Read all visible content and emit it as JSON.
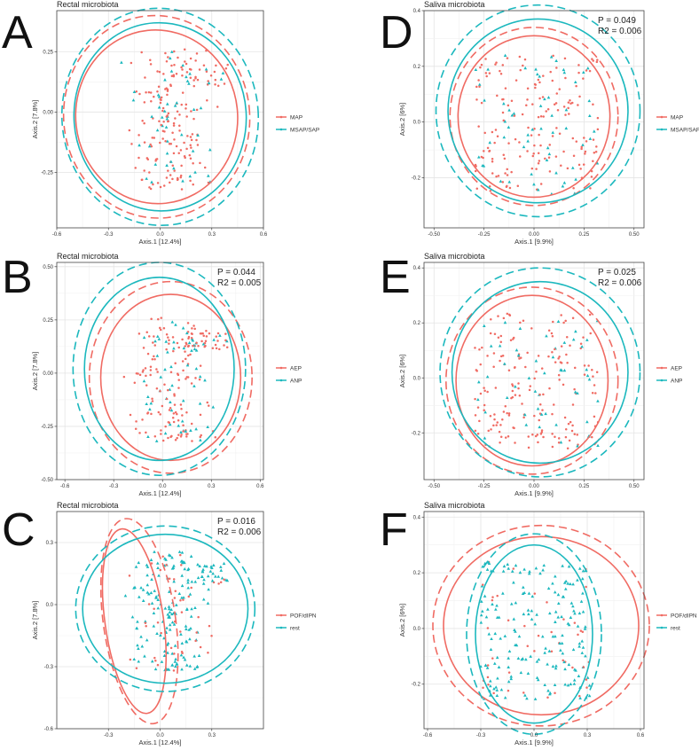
{
  "colors": {
    "red": "#F06B63",
    "teal": "#1CB8BE",
    "grid": "#e4e4e4",
    "frame": "#444444"
  },
  "chart_data": [
    {
      "id": "A",
      "letter": "A",
      "type": "scatter",
      "title": "Rectal microbiota",
      "xlabel": "Axis.1   [12.4%]",
      "ylabel": "Axis.2 [7.8%]",
      "xlim": [
        -0.6,
        0.6
      ],
      "ylim": [
        -0.48,
        0.42
      ],
      "xticks": [
        -0.6,
        -0.3,
        0.0,
        0.3,
        0.6
      ],
      "xtick_labels": [
        "-0.6",
        "-0.3",
        "0.0",
        "0.3",
        "0.6"
      ],
      "yticks": [
        -0.25,
        0.0,
        0.25
      ],
      "ytick_labels": [
        "-0.25",
        "0.00",
        "0.25"
      ],
      "stats": [],
      "legend": {
        "position": "right",
        "entries": [
          "MAP",
          "MSAP/SAP"
        ]
      },
      "points": {
        "shape": "rectal",
        "majority": "red",
        "seed": 11
      },
      "ellipses": [
        {
          "series": "MAP",
          "cx": -0.02,
          "cy": -0.02,
          "rx": 0.47,
          "ry": 0.36,
          "angle": -6,
          "dashed": false
        },
        {
          "series": "MAP",
          "cx": -0.02,
          "cy": -0.02,
          "rx": 0.54,
          "ry": 0.42,
          "angle": -6,
          "dashed": true
        },
        {
          "series": "MSAP/SAP",
          "cx": 0.0,
          "cy": -0.02,
          "rx": 0.5,
          "ry": 0.39,
          "angle": -4,
          "dashed": false
        },
        {
          "series": "MSAP/SAP",
          "cx": 0.0,
          "cy": -0.02,
          "rx": 0.57,
          "ry": 0.45,
          "angle": -4,
          "dashed": true
        }
      ]
    },
    {
      "id": "B",
      "letter": "B",
      "type": "scatter",
      "title": "Rectal microbiota",
      "xlabel": "Axis.1   [12.4%]",
      "ylabel": "Axis.2 [7.8%]",
      "xlim": [
        -0.65,
        0.62
      ],
      "ylim": [
        -0.5,
        0.52
      ],
      "xticks": [
        -0.6,
        -0.3,
        0.0,
        0.3,
        0.6
      ],
      "xtick_labels": [
        "-0.6",
        "-0.3",
        "0.0",
        "0.3",
        "0.6"
      ],
      "yticks": [
        -0.5,
        -0.25,
        0.0,
        0.25,
        0.5
      ],
      "ytick_labels": [
        "-0.50",
        "-0.25",
        "0.00",
        "0.25",
        "0.50"
      ],
      "stats": [
        "P = 0.044",
        "R2 = 0.005"
      ],
      "legend": {
        "position": "right",
        "entries": [
          "AEP",
          "ANP"
        ]
      },
      "points": {
        "shape": "rectal",
        "majority": "red",
        "seed": 23
      },
      "ellipses": [
        {
          "series": "AEP",
          "cx": 0.05,
          "cy": -0.02,
          "rx": 0.43,
          "ry": 0.39,
          "angle": 0,
          "dashed": false
        },
        {
          "series": "AEP",
          "cx": 0.05,
          "cy": -0.02,
          "rx": 0.5,
          "ry": 0.45,
          "angle": 0,
          "dashed": true
        },
        {
          "series": "ANP",
          "cx": -0.02,
          "cy": 0.02,
          "rx": 0.46,
          "ry": 0.43,
          "angle": 0,
          "dashed": false
        },
        {
          "series": "ANP",
          "cx": -0.02,
          "cy": 0.02,
          "rx": 0.53,
          "ry": 0.5,
          "angle": 0,
          "dashed": true
        }
      ]
    },
    {
      "id": "C",
      "letter": "C",
      "type": "scatter",
      "title": "Rectal microbiota",
      "xlabel": "Axis.1   [12.4%]",
      "ylabel": "Axis.2 [7.8%]",
      "xlim": [
        -0.6,
        0.6
      ],
      "ylim": [
        -0.6,
        0.45
      ],
      "xticks": [
        -0.3,
        0.0,
        0.3
      ],
      "xtick_labels": [
        "-0.3",
        "0.0",
        "0.3"
      ],
      "yticks": [
        -0.6,
        -0.3,
        0.0,
        0.3
      ],
      "ytick_labels": [
        "-0.6",
        "-0.3",
        "0.0",
        "0.3"
      ],
      "stats": [
        "P = 0.016",
        "R2 = 0.006"
      ],
      "legend": {
        "position": "right",
        "entries": [
          "POF/dIPN",
          "rest"
        ]
      },
      "points": {
        "shape": "rectal",
        "majority": "teal",
        "seed": 37
      },
      "ellipses": [
        {
          "series": "POF/dIPN",
          "cx": -0.15,
          "cy": -0.08,
          "rx": 0.17,
          "ry": 0.45,
          "angle": -8,
          "dashed": false
        },
        {
          "series": "POF/dIPN",
          "cx": -0.12,
          "cy": -0.08,
          "rx": 0.21,
          "ry": 0.5,
          "angle": -8,
          "dashed": true
        },
        {
          "series": "rest",
          "cx": 0.03,
          "cy": -0.02,
          "rx": 0.48,
          "ry": 0.36,
          "angle": 0,
          "dashed": false
        },
        {
          "series": "rest",
          "cx": 0.03,
          "cy": -0.02,
          "rx": 0.52,
          "ry": 0.4,
          "angle": 0,
          "dashed": true
        }
      ]
    },
    {
      "id": "D",
      "letter": "D",
      "type": "scatter",
      "title": "Saliva microbiota",
      "xlabel": "Axis.1   [9.9%]",
      "ylabel": "Axis.2 [6%]",
      "xlim": [
        -0.55,
        0.55
      ],
      "ylim": [
        -0.38,
        0.4
      ],
      "xticks": [
        -0.5,
        -0.25,
        0.0,
        0.25,
        0.5
      ],
      "xtick_labels": [
        "-0.50",
        "-0.25",
        "0.00",
        "0.25",
        "0.50"
      ],
      "yticks": [
        -0.2,
        0.0,
        0.2,
        0.4
      ],
      "ytick_labels": [
        "-0.2",
        "0.0",
        "0.2",
        "0.4"
      ],
      "stats": [
        "P = 0.049",
        "R2 = 0.006"
      ],
      "legend": {
        "position": "right",
        "entries": [
          "MAP",
          "MSAP/SAP"
        ]
      },
      "points": {
        "shape": "saliva",
        "majority": "red",
        "seed": 41
      },
      "ellipses": [
        {
          "series": "MAP",
          "cx": 0.0,
          "cy": 0.02,
          "rx": 0.38,
          "ry": 0.29,
          "angle": 0,
          "dashed": false
        },
        {
          "series": "MAP",
          "cx": 0.0,
          "cy": 0.02,
          "rx": 0.42,
          "ry": 0.32,
          "angle": 0,
          "dashed": true
        },
        {
          "series": "MSAP/SAP",
          "cx": 0.02,
          "cy": 0.04,
          "rx": 0.45,
          "ry": 0.33,
          "angle": 0,
          "dashed": false
        },
        {
          "series": "MSAP/SAP",
          "cx": 0.02,
          "cy": 0.04,
          "rx": 0.51,
          "ry": 0.38,
          "angle": 0,
          "dashed": true
        }
      ]
    },
    {
      "id": "E",
      "letter": "E",
      "type": "scatter",
      "title": "Saliva microbiota",
      "xlabel": "Axis.1   [9.9%]",
      "ylabel": "Axis.2 [6%]",
      "xlim": [
        -0.55,
        0.55
      ],
      "ylim": [
        -0.37,
        0.42
      ],
      "xticks": [
        -0.5,
        -0.25,
        0.0,
        0.25,
        0.5
      ],
      "xtick_labels": [
        "-0.50",
        "-0.25",
        "0.00",
        "0.25",
        "0.50"
      ],
      "yticks": [
        -0.2,
        0.0,
        0.2,
        0.4
      ],
      "ytick_labels": [
        "-0.2",
        "0.0",
        "0.2",
        "0.4"
      ],
      "stats": [
        "P = 0.025",
        "R2 = 0.006"
      ],
      "legend": {
        "position": "right",
        "entries": [
          "AEP",
          "ANP"
        ]
      },
      "points": {
        "shape": "saliva",
        "majority": "red",
        "seed": 53
      },
      "ellipses": [
        {
          "series": "AEP",
          "cx": -0.01,
          "cy": -0.01,
          "rx": 0.38,
          "ry": 0.31,
          "angle": 0,
          "dashed": false
        },
        {
          "series": "AEP",
          "cx": -0.01,
          "cy": -0.01,
          "rx": 0.43,
          "ry": 0.34,
          "angle": 0,
          "dashed": true
        },
        {
          "series": "ANP",
          "cx": 0.03,
          "cy": 0.02,
          "rx": 0.44,
          "ry": 0.33,
          "angle": 0,
          "dashed": false
        },
        {
          "series": "ANP",
          "cx": 0.03,
          "cy": 0.02,
          "rx": 0.5,
          "ry": 0.38,
          "angle": 0,
          "dashed": true
        }
      ]
    },
    {
      "id": "F",
      "letter": "F",
      "type": "scatter",
      "title": "Saliva microbiota",
      "xlabel": "Axis.1   [9.9%]",
      "ylabel": "Axis.2 [6%]",
      "xlim": [
        -0.62,
        0.62
      ],
      "ylim": [
        -0.36,
        0.42
      ],
      "xticks": [
        -0.6,
        -0.3,
        0.0,
        0.3,
        0.6
      ],
      "xtick_labels": [
        "-0.6",
        "-0.3",
        "0.0",
        "0.3",
        "0.6"
      ],
      "yticks": [
        -0.2,
        0.0,
        0.2,
        0.4
      ],
      "ytick_labels": [
        "-0.2",
        "0.0",
        "0.2",
        "0.4"
      ],
      "stats": [],
      "legend": {
        "position": "right",
        "entries": [
          "POF/dIPN",
          "rest"
        ]
      },
      "points": {
        "shape": "saliva",
        "majority": "teal",
        "seed": 67
      },
      "ellipses": [
        {
          "series": "POF/dIPN",
          "cx": 0.04,
          "cy": 0.01,
          "rx": 0.55,
          "ry": 0.32,
          "angle": 0,
          "dashed": false
        },
        {
          "series": "POF/dIPN",
          "cx": 0.04,
          "cy": 0.01,
          "rx": 0.61,
          "ry": 0.36,
          "angle": 0,
          "dashed": true
        },
        {
          "series": "rest",
          "cx": 0.0,
          "cy": -0.02,
          "rx": 0.33,
          "ry": 0.32,
          "angle": 0,
          "dashed": false
        },
        {
          "series": "rest",
          "cx": 0.0,
          "cy": -0.02,
          "rx": 0.38,
          "ry": 0.36,
          "angle": 0,
          "dashed": true
        }
      ]
    }
  ]
}
